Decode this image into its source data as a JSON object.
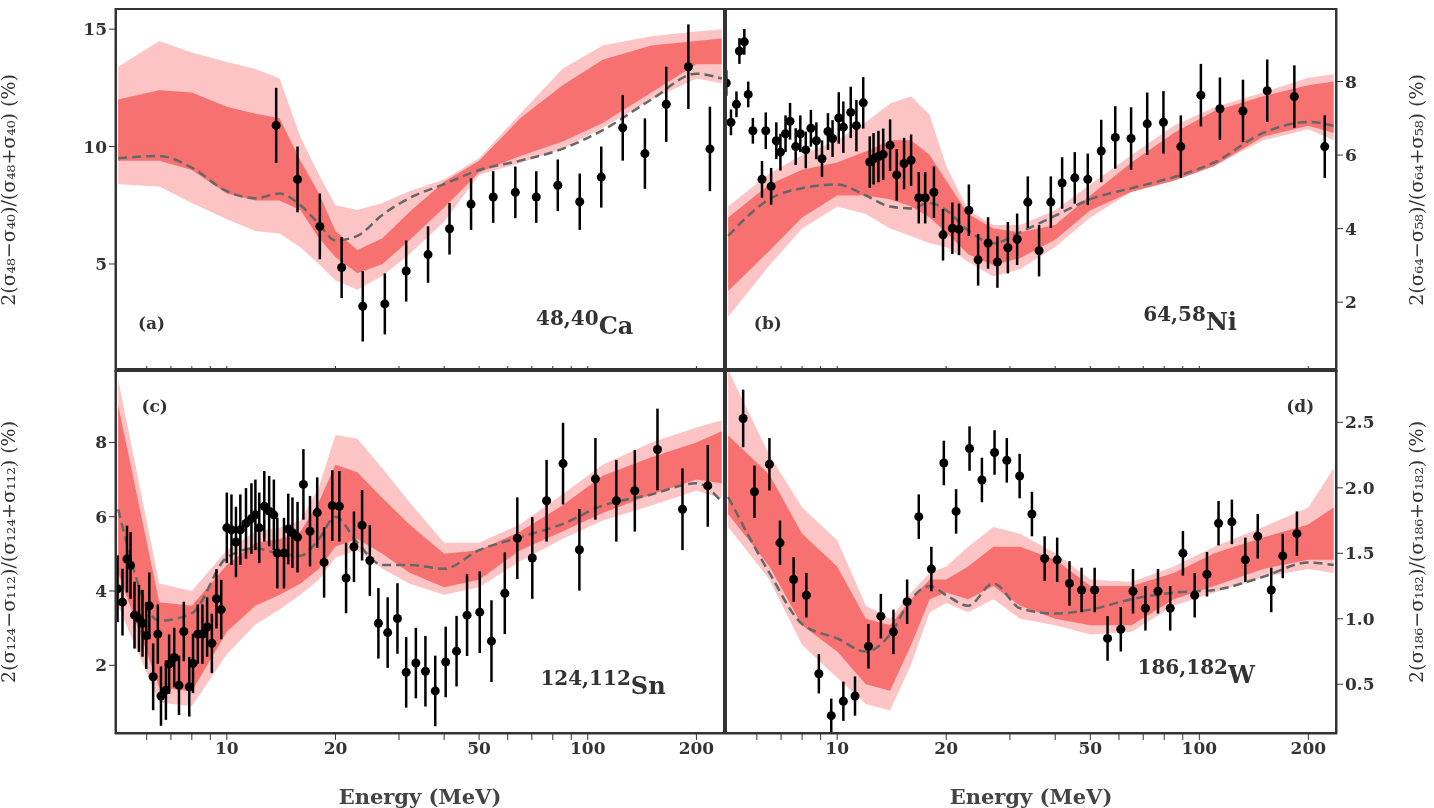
{
  "chart_data": [
    {
      "type": "scatter",
      "ylabel": "2(σ₄₈−σ₄₀)/(σ₄₈+σ₄₀) (%)",
      "annotations": [
        "(a)",
        "$^{48,40}$Ca"
      ],
      "xlim": [
        4.9,
        240
      ],
      "xticks": [
        {
          "value": 6,
          "label": null
        },
        {
          "value": 7,
          "label": null
        },
        {
          "value": 8,
          "label": null
        },
        {
          "value": 9,
          "label": null
        },
        10,
        20,
        {
          "value": 30,
          "label": null
        },
        {
          "value": 40,
          "label": null
        },
        50,
        {
          "value": 60,
          "label": null
        },
        {
          "value": 70,
          "label": null
        },
        {
          "value": 80,
          "label": null
        },
        {
          "value": 90,
          "label": null
        },
        100,
        200
      ],
      "log": "x",
      "ylim": [
        0.4,
        15.9
      ],
      "yticks": [
        5,
        10,
        15
      ],
      "tick_labels": "y",
      "series": [
        {
          "type": "line",
          "color": "#666666",
          "line_style": "dashed",
          "x": [
            5,
            6.5,
            8,
            10,
            12,
            14,
            16,
            18,
            20,
            23,
            27,
            32,
            40,
            50,
            65,
            85,
            110,
            150,
            200,
            235
          ],
          "values": [
            9.5,
            9.6,
            9.1,
            8.1,
            7.8,
            8.0,
            7.5,
            6.7,
            6.0,
            6.2,
            7.1,
            7.8,
            8.4,
            9.0,
            9.4,
            9.9,
            10.7,
            12.0,
            13.1,
            12.9
          ],
          "lower": [
            8.4,
            8.3,
            7.6,
            6.9,
            6.4,
            6.3,
            5.7,
            5.0,
            4.3,
            3.9,
            4.5,
            5.4,
            6.8,
            8.8,
            9.3,
            9.9,
            10.8,
            12.0,
            12.9,
            12.7
          ],
          "upper": [
            13.4,
            14.5,
            14.0,
            13.6,
            13.3,
            12.9,
            10.4,
            8.8,
            7.5,
            7.3,
            7.6,
            8.1,
            8.6,
            9.5,
            11.4,
            13.3,
            14.3,
            14.7,
            14.9,
            15.0
          ]
        },
        {
          "type": "line",
          "x": [
            5,
            6.5,
            8,
            10,
            12,
            14,
            16,
            18,
            20,
            23,
            27,
            32,
            40,
            50,
            65,
            85,
            110,
            150,
            200,
            235
          ],
          "values": [
            null,
            null,
            null,
            null,
            null,
            null,
            null,
            null,
            null,
            null,
            null,
            null,
            null,
            null,
            null,
            null,
            null,
            null,
            null,
            null
          ],
          "lower": [
            9.4,
            9.4,
            9.0,
            8.0,
            7.7,
            7.7,
            7.3,
            6.1,
            5.3,
            4.6,
            5.0,
            6.0,
            7.4,
            8.9,
            9.6,
            10.2,
            11.0,
            12.3,
            13.5,
            13.5
          ],
          "upper": [
            12.0,
            12.4,
            12.3,
            11.7,
            11.4,
            11.2,
            9.4,
            8.0,
            6.4,
            5.6,
            6.1,
            7.2,
            8.5,
            9.4,
            11.2,
            12.6,
            13.7,
            14.3,
            14.5,
            14.6
          ]
        },
        {
          "type": "scatter",
          "marker": "circle",
          "color": "#000000",
          "x": [
            13.7,
            15.7,
            18.1,
            20.8,
            23.8,
            27.4,
            31.4,
            36.1,
            41.4,
            47.5,
            54.7,
            63.0,
            72.0,
            82.6,
            95.0,
            109,
            125,
            144,
            165,
            190,
            218
          ],
          "values": [
            10.9,
            8.6,
            6.6,
            4.85,
            3.2,
            3.3,
            4.7,
            5.4,
            6.5,
            7.55,
            7.85,
            8.05,
            7.85,
            8.35,
            7.65,
            8.7,
            10.8,
            9.7,
            11.8,
            13.4,
            9.9
          ],
          "errors": [
            1.6,
            1.4,
            1.4,
            1.3,
            1.5,
            1.3,
            1.3,
            1.2,
            1.1,
            1.1,
            1.1,
            1.1,
            1.1,
            1.1,
            1.2,
            1.3,
            1.4,
            1.5,
            1.6,
            1.8,
            1.8
          ]
        }
      ]
    },
    {
      "type": "scatter",
      "y2label": "2(σ₆₄−σ₅₈)/(σ₆₄+σ₅₈) (%)",
      "annotations": [
        "(b)",
        "$^{64,58}$Ni"
      ],
      "xlim": [
        4.9,
        240
      ],
      "xticks": [
        {
          "value": 6,
          "label": null
        },
        {
          "value": 7,
          "label": null
        },
        {
          "value": 8,
          "label": null
        },
        {
          "value": 9,
          "label": null
        },
        10,
        20,
        {
          "value": 30,
          "label": null
        },
        {
          "value": 40,
          "label": null
        },
        50,
        {
          "value": 60,
          "label": null
        },
        {
          "value": 70,
          "label": null
        },
        {
          "value": 80,
          "label": null
        },
        {
          "value": 90,
          "label": null
        },
        100,
        200
      ],
      "log": "x",
      "y2lim": [
        0.1,
        10
      ],
      "y2ticks": [
        2,
        4,
        6,
        8
      ],
      "tick_labels": "y",
      "series": [
        {
          "type": "line",
          "axis": "y2",
          "color": "#666666",
          "line_style": "dashed",
          "x": [
            5,
            6.5,
            8,
            10,
            12,
            14,
            16,
            18,
            20,
            23,
            27,
            32,
            40,
            50,
            65,
            85,
            110,
            150,
            200,
            235
          ],
          "values": [
            3.8,
            4.8,
            5.1,
            5.2,
            4.9,
            4.6,
            4.55,
            4.7,
            4.5,
            3.95,
            3.6,
            3.9,
            4.35,
            4.8,
            5.1,
            5.4,
            5.8,
            6.6,
            6.9,
            6.8
          ],
          "lower": [
            1.6,
            3.0,
            4.0,
            4.6,
            4.4,
            4.0,
            3.8,
            3.6,
            3.5,
            3.1,
            2.7,
            2.9,
            3.5,
            4.3,
            5.0,
            5.3,
            5.7,
            6.4,
            6.7,
            6.4
          ],
          "upper": [
            4.6,
            5.5,
            6.0,
            6.4,
            6.9,
            7.4,
            7.6,
            7.1,
            5.7,
            4.5,
            4.1,
            4.1,
            4.5,
            5.2,
            6.0,
            6.8,
            7.3,
            7.7,
            8.1,
            8.2
          ]
        },
        {
          "type": "line",
          "axis": "y2",
          "x": [
            5,
            6.5,
            8,
            10,
            12,
            14,
            16,
            18,
            20,
            23,
            27,
            32,
            40,
            50,
            65,
            85,
            110,
            150,
            200,
            235
          ],
          "values": [
            null,
            null,
            null,
            null,
            null,
            null,
            null,
            null,
            null,
            null,
            null,
            null,
            null,
            null,
            null,
            null,
            null,
            null,
            null,
            null
          ],
          "lower": [
            2.3,
            3.4,
            4.3,
            4.9,
            4.9,
            4.8,
            4.6,
            4.3,
            3.9,
            3.3,
            3.0,
            3.2,
            3.7,
            4.5,
            5.0,
            5.3,
            5.7,
            6.5,
            6.8,
            6.6
          ],
          "upper": [
            4.3,
            5.2,
            5.6,
            5.8,
            6.1,
            6.4,
            6.4,
            6.0,
            5.3,
            4.4,
            4.0,
            3.9,
            4.1,
            4.9,
            5.8,
            6.6,
            7.2,
            7.6,
            7.9,
            8.0
          ]
        },
        {
          "type": "scatter",
          "marker": "circle",
          "axis": "y2",
          "color": "#000000",
          "x": [
            4.94,
            5.09,
            5.27,
            5.37,
            5.54,
            5.68,
            5.85,
            6.2,
            6.35,
            6.57,
            6.79,
            6.97,
            7.2,
            7.41,
            7.68,
            7.91,
            8.19,
            8.46,
            8.76,
            9.08,
            9.43,
            9.71,
            10.1,
            10.4,
            10.9,
            11.3,
            11.8,
            12.3,
            12.6,
            13.0,
            13.4,
            14.0,
            14.6,
            15.3,
            16.0,
            16.8,
            17.5,
            18.5,
            19.6,
            20.8,
            21.7,
            23.1,
            24.5,
            26.1,
            27.7,
            29.6,
            31.4,
            33.6,
            36.1,
            38.9,
            41.8,
            45.3,
            49.2,
            53.6,
            58.6,
            64.8,
            71.8,
            79.6,
            88.9,
            101,
            114,
            132,
            154,
            183,
            222
          ],
          "values": [
            7.96,
            6.89,
            7.38,
            8.83,
            9.08,
            7.65,
            6.66,
            5.34,
            6.66,
            5.15,
            6.39,
            6.08,
            6.58,
            6.92,
            6.23,
            6.58,
            6.14,
            6.73,
            6.39,
            5.9,
            6.64,
            6.45,
            7.01,
            6.76,
            7.16,
            6.8,
            7.42,
            5.81,
            5.9,
            5.96,
            6.02,
            6.27,
            5.46,
            5.77,
            5.86,
            4.84,
            4.84,
            4.99,
            3.83,
            4.01,
            3.98,
            4.5,
            3.15,
            3.61,
            3.09,
            3.48,
            3.71,
            4.72,
            3.4,
            4.72,
            5.24,
            5.38,
            5.34,
            6.11,
            6.48,
            6.45,
            6.85,
            6.89,
            6.23,
            7.63,
            7.26,
            7.2,
            7.75,
            7.59,
            6.23
          ],
          "errors": [
            0.35,
            0.35,
            0.35,
            0.35,
            0.35,
            0.35,
            0.35,
            0.5,
            0.5,
            0.5,
            0.5,
            0.5,
            0.5,
            0.5,
            0.5,
            0.5,
            0.5,
            0.5,
            0.5,
            0.5,
            0.5,
            0.5,
            0.7,
            0.7,
            0.7,
            0.7,
            0.7,
            0.7,
            0.7,
            0.7,
            0.7,
            0.7,
            0.7,
            0.7,
            0.7,
            0.7,
            0.7,
            0.7,
            0.7,
            0.7,
            0.7,
            0.7,
            0.7,
            0.7,
            0.7,
            0.7,
            0.7,
            0.7,
            0.7,
            0.7,
            0.7,
            0.7,
            0.7,
            0.85,
            0.85,
            0.85,
            0.85,
            0.85,
            0.85,
            0.85,
            0.85,
            0.85,
            0.85,
            0.85,
            0.85
          ]
        }
      ]
    },
    {
      "type": "scatter",
      "ylabel": "2(σ₁₂₄−σ₁₁₂)/(σ₁₂₄+σ₁₁₂) (%)",
      "xlabel": "Energy (MeV)",
      "annotations": [
        "(c)",
        "$^{124,112}$Sn"
      ],
      "xlim": [
        4.9,
        240
      ],
      "xticks": [
        {
          "value": 6,
          "label": null
        },
        {
          "value": 7,
          "label": null
        },
        {
          "value": 8,
          "label": null
        },
        {
          "value": 9,
          "label": null
        },
        10,
        20,
        {
          "value": 30,
          "label": null
        },
        {
          "value": 40,
          "label": null
        },
        50,
        {
          "value": 60,
          "label": null
        },
        {
          "value": 70,
          "label": null
        },
        {
          "value": 80,
          "label": null
        },
        {
          "value": 90,
          "label": null
        },
        100,
        200
      ],
      "log": "x",
      "ylim": [
        0.15,
        9.95
      ],
      "yticks": [
        2,
        4,
        6,
        8
      ],
      "series": [
        {
          "type": "line",
          "color": "#666666",
          "line_style": "dashed",
          "x": [
            5,
            6.5,
            8,
            10,
            12,
            14,
            16,
            18,
            20,
            23,
            27,
            32,
            40,
            50,
            65,
            85,
            110,
            150,
            200,
            235
          ],
          "values": [
            6.2,
            3.2,
            3.4,
            4.9,
            5.15,
            5.0,
            4.95,
            5.4,
            6.0,
            5.3,
            4.7,
            4.7,
            4.6,
            5.1,
            5.45,
            5.8,
            6.3,
            6.6,
            6.9,
            6.4
          ],
          "lower": [
            3.6,
            1.0,
            0.9,
            2.3,
            3.1,
            3.5,
            3.9,
            4.3,
            4.9,
            5.1,
            4.6,
            4.2,
            3.9,
            4.1,
            4.8,
            5.4,
            5.9,
            6.3,
            6.7,
            6.5
          ],
          "upper": [
            9.7,
            4.2,
            4.0,
            5.1,
            5.6,
            5.7,
            5.9,
            6.8,
            8.2,
            8.1,
            7.3,
            6.4,
            5.3,
            5.3,
            5.8,
            6.6,
            7.4,
            8.0,
            8.4,
            8.6
          ]
        },
        {
          "type": "line",
          "x": [
            5,
            6.5,
            8,
            10,
            12,
            14,
            16,
            18,
            20,
            23,
            27,
            32,
            40,
            50,
            65,
            85,
            110,
            150,
            200,
            235
          ],
          "values": [
            null,
            null,
            null,
            null,
            null,
            null,
            null,
            null,
            null,
            null,
            null,
            null,
            null,
            null,
            null,
            null,
            null,
            null,
            null,
            null
          ],
          "lower": [
            4.5,
            1.4,
            1.3,
            2.9,
            3.6,
            3.9,
            4.2,
            4.6,
            5.2,
            5.4,
            5.0,
            4.5,
            4.1,
            4.3,
            5.1,
            5.6,
            6.1,
            6.6,
            7.0,
            6.9
          ],
          "upper": [
            9.0,
            3.7,
            3.6,
            4.7,
            5.3,
            5.4,
            5.6,
            6.4,
            7.4,
            7.2,
            6.5,
            5.8,
            5.0,
            5.1,
            5.6,
            6.3,
            7.1,
            7.6,
            8.0,
            8.3
          ]
        },
        {
          "type": "scatter",
          "marker": "circle",
          "color": "#000000",
          "x": [
            4.98,
            5.14,
            5.29,
            5.41,
            5.55,
            5.71,
            5.84,
            5.98,
            6.1,
            6.25,
            6.44,
            6.57,
            6.78,
            6.92,
            7.15,
            7.37,
            7.6,
            7.87,
            8.06,
            8.31,
            8.56,
            8.82,
            9.09,
            9.36,
            9.65,
            10.0,
            10.3,
            10.6,
            10.9,
            11.3,
            11.7,
            12.0,
            12.3,
            12.7,
            13.1,
            13.5,
            13.8,
            14.4,
            14.8,
            15.2,
            15.7,
            16.3,
            17.0,
            17.8,
            18.6,
            19.6,
            20.5,
            21.4,
            22.5,
            23.7,
            24.9,
            26.3,
            27.9,
            29.7,
            31.4,
            33.4,
            35.5,
            37.8,
            40.4,
            43.3,
            46.3,
            50.2,
            54.1,
            58.9,
            63.8,
            70.2,
            76.9,
            85.4,
            94.8,
            105,
            120,
            135,
            156,
            183,
            215
          ],
          "values": [
            4.06,
            3.7,
            4.86,
            4.69,
            3.35,
            3.26,
            3.13,
            2.8,
            3.6,
            1.69,
            2.84,
            1.17,
            1.33,
            2.03,
            2.21,
            1.46,
            2.91,
            1.42,
            2.05,
            2.84,
            2.84,
            3.03,
            2.59,
            3.79,
            3.5,
            5.7,
            5.65,
            5.32,
            5.65,
            5.82,
            5.95,
            6.05,
            5.7,
            6.28,
            6.15,
            6.05,
            5.02,
            5.02,
            5.67,
            5.57,
            5.45,
            6.87,
            5.61,
            6.11,
            4.77,
            6.3,
            6.28,
            4.35,
            5.19,
            5.77,
            4.82,
            3.13,
            2.88,
            3.26,
            1.81,
            2.06,
            1.84,
            1.31,
            2.09,
            2.38,
            3.35,
            3.43,
            2.65,
            3.94,
            5.42,
            4.89,
            6.43,
            7.43,
            5.11,
            7.02,
            6.43,
            6.7,
            7.81,
            6.2,
            6.83
          ],
          "errors": [
            0.9,
            0.9,
            0.9,
            0.9,
            0.9,
            0.9,
            0.9,
            0.9,
            0.9,
            0.9,
            0.8,
            0.8,
            0.8,
            0.8,
            0.8,
            0.8,
            0.8,
            0.8,
            0.8,
            0.8,
            0.8,
            0.8,
            0.8,
            0.8,
            0.8,
            0.95,
            0.95,
            0.95,
            0.95,
            0.95,
            0.95,
            0.95,
            0.95,
            0.95,
            0.95,
            0.95,
            0.95,
            0.95,
            0.95,
            0.95,
            0.95,
            0.95,
            0.95,
            0.95,
            0.95,
            0.95,
            0.95,
            0.95,
            0.95,
            0.95,
            0.95,
            0.95,
            0.95,
            0.95,
            0.95,
            0.95,
            0.95,
            0.95,
            0.95,
            0.95,
            1.1,
            1.1,
            1.1,
            1.1,
            1.1,
            1.1,
            1.1,
            1.1,
            1.1,
            1.1,
            1.1,
            1.1,
            1.1,
            1.1,
            1.1
          ]
        }
      ]
    },
    {
      "type": "scatter",
      "y2label": "2(σ₁₈₆−σ₁₈₂)/(σ₁₈₆+σ₁₈₂) (%)",
      "xlabel": "Energy (MeV)",
      "annotations": [
        "(d)",
        "$^{186,182}$W"
      ],
      "xlim": [
        4.9,
        240
      ],
      "xticks": [
        {
          "value": 6,
          "label": null
        },
        {
          "value": 7,
          "label": null
        },
        {
          "value": 8,
          "label": null
        },
        {
          "value": 9,
          "label": null
        },
        10,
        20,
        {
          "value": 30,
          "label": null
        },
        {
          "value": 40,
          "label": null
        },
        50,
        {
          "value": 60,
          "label": null
        },
        {
          "value": 70,
          "label": null
        },
        {
          "value": 80,
          "label": null
        },
        {
          "value": 90,
          "label": null
        },
        100,
        200
      ],
      "log": "x",
      "y2lim": [
        0.12,
        2.9
      ],
      "y2ticks": [
        0.5,
        {
          "value": 1,
          "label": "1.0"
        },
        1.5,
        {
          "value": 2,
          "label": "2.0"
        },
        2.5
      ],
      "series": [
        {
          "type": "line",
          "axis": "y2",
          "color": "#666666",
          "line_style": "dashed",
          "x": [
            5,
            6.5,
            8,
            10,
            12,
            14,
            16,
            18,
            20,
            23,
            27,
            32,
            40,
            50,
            65,
            85,
            110,
            150,
            200,
            235
          ],
          "values": [
            1.93,
            1.35,
            0.96,
            0.85,
            0.75,
            0.88,
            1.15,
            1.25,
            1.18,
            1.1,
            1.27,
            1.08,
            1.04,
            1.07,
            1.15,
            1.2,
            1.22,
            1.32,
            1.43,
            1.41
          ],
          "lower": [
            1.7,
            1.3,
            0.8,
            0.55,
            0.35,
            0.3,
            0.65,
            1.05,
            1.12,
            1.05,
            1.15,
            1.0,
            0.95,
            0.88,
            0.9,
            1.1,
            1.2,
            1.32,
            1.38,
            1.35
          ],
          "upper": [
            2.9,
            2.25,
            1.85,
            1.6,
            1.1,
            1.0,
            1.2,
            1.35,
            1.4,
            1.55,
            1.7,
            1.65,
            1.5,
            1.3,
            1.28,
            1.4,
            1.55,
            1.7,
            1.85,
            2.15
          ]
        },
        {
          "type": "line",
          "axis": "y2",
          "x": [
            5,
            6.5,
            8,
            10,
            12,
            14,
            16,
            18,
            20,
            23,
            27,
            32,
            40,
            50,
            65,
            85,
            110,
            150,
            200,
            235
          ],
          "values": [
            null,
            null,
            null,
            null,
            null,
            null,
            null,
            null,
            null,
            null,
            null,
            null,
            null,
            null,
            null,
            null,
            null,
            null,
            null,
            null
          ],
          "lower": [
            1.8,
            1.4,
            0.95,
            0.75,
            0.5,
            0.45,
            0.8,
            1.15,
            1.2,
            1.15,
            1.25,
            1.1,
            1.0,
            0.95,
            0.95,
            1.15,
            1.25,
            1.38,
            1.45,
            1.45
          ],
          "upper": [
            2.4,
            2.1,
            1.65,
            1.4,
            1.0,
            0.95,
            1.15,
            1.3,
            1.3,
            1.4,
            1.55,
            1.55,
            1.45,
            1.25,
            1.25,
            1.35,
            1.5,
            1.62,
            1.72,
            1.85
          ]
        },
        {
          "type": "scatter",
          "marker": "circle",
          "axis": "y2",
          "color": "#000000",
          "x": [
            5.5,
            5.91,
            6.5,
            6.95,
            7.58,
            8.22,
            8.9,
            9.63,
            10.4,
            11.2,
            12.2,
            13.2,
            14.3,
            15.6,
            16.8,
            18.2,
            19.7,
            21.3,
            23.2,
            25.1,
            27.2,
            29.4,
            31.9,
            34.5,
            37.4,
            40.5,
            43.8,
            47.3,
            51.4,
            55.8,
            60.7,
            65.6,
            71.0,
            76.9,
            83.1,
            90.1,
            97.1,
            105,
            113,
            123,
            134,
            145,
            158,
            170,
            186
          ],
          "values": [
            2.53,
            1.97,
            2.18,
            1.58,
            1.3,
            1.18,
            0.58,
            0.26,
            0.37,
            0.41,
            0.79,
            1.02,
            0.9,
            1.13,
            1.78,
            1.38,
            2.19,
            1.82,
            2.3,
            2.06,
            2.27,
            2.21,
            2.09,
            1.8,
            1.46,
            1.45,
            1.27,
            1.22,
            1.22,
            0.85,
            0.92,
            1.21,
            1.08,
            1.21,
            1.08,
            1.5,
            1.18,
            1.34,
            1.73,
            1.74,
            1.45,
            1.63,
            1.22,
            1.48,
            1.65
          ],
          "errors": [
            0.22,
            0.2,
            0.2,
            0.17,
            0.17,
            0.17,
            0.15,
            0.13,
            0.15,
            0.15,
            0.17,
            0.17,
            0.17,
            0.17,
            0.17,
            0.17,
            0.17,
            0.17,
            0.17,
            0.17,
            0.17,
            0.17,
            0.17,
            0.17,
            0.17,
            0.17,
            0.17,
            0.17,
            0.17,
            0.17,
            0.17,
            0.17,
            0.17,
            0.17,
            0.17,
            0.17,
            0.17,
            0.17,
            0.17,
            0.17,
            0.17,
            0.17,
            0.17,
            0.17,
            0.17
          ]
        }
      ]
    }
  ]
}
